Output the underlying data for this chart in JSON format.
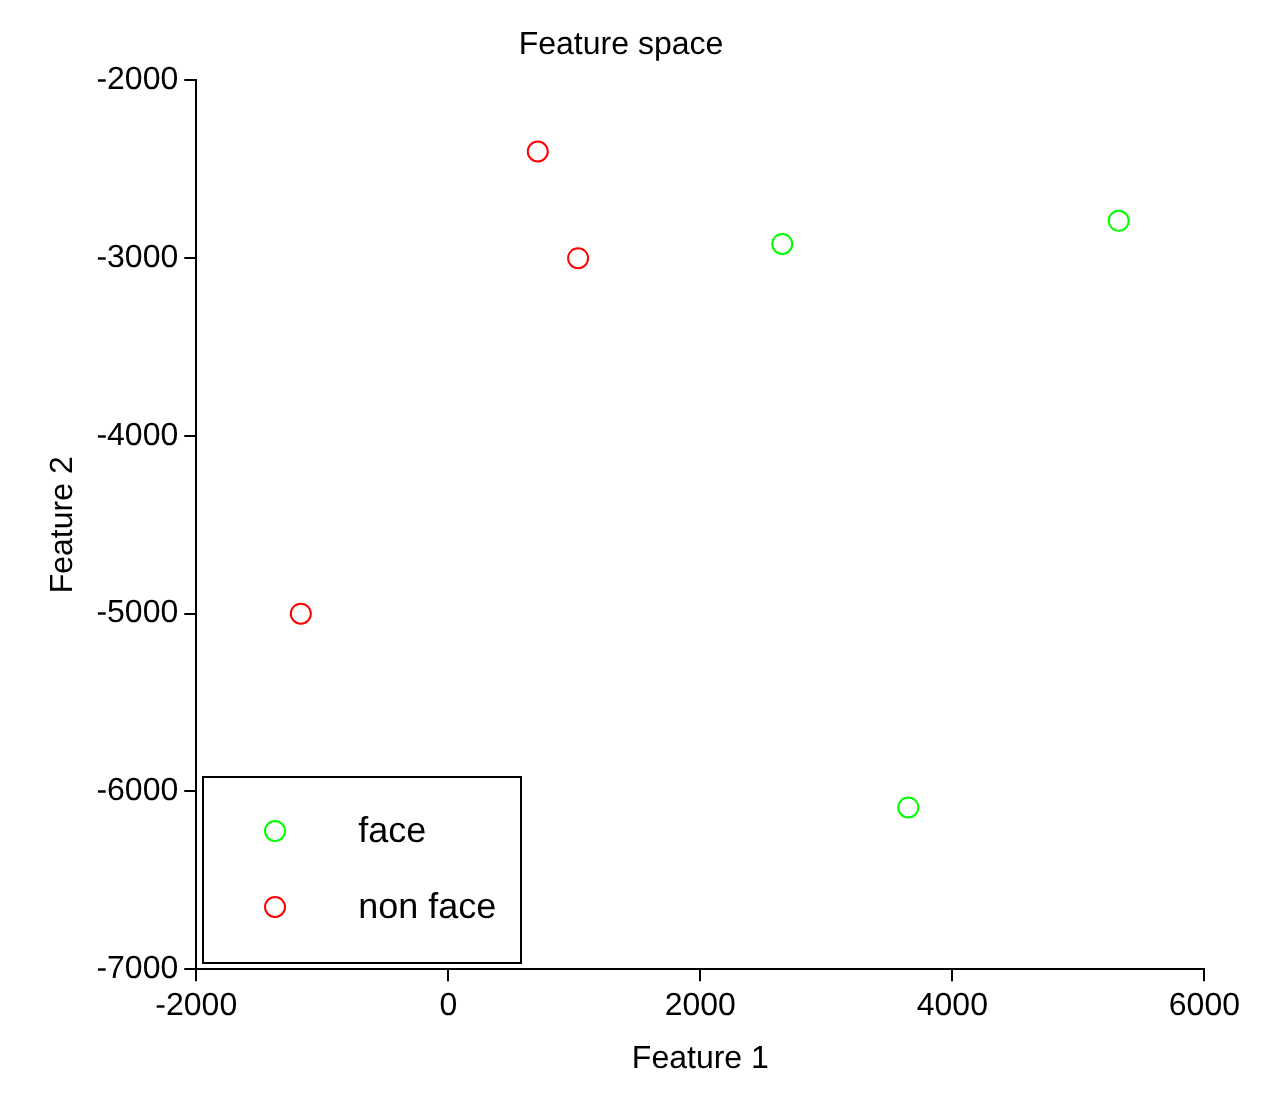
{
  "chart_data": {
    "type": "scatter",
    "title": "Feature space",
    "xlabel": "Feature 1",
    "ylabel": "Feature 2",
    "xlim": [
      -2000,
      6000
    ],
    "xticks": [
      -2000,
      0,
      2000,
      4000,
      6000
    ],
    "ylim": [
      -7000,
      -2000
    ],
    "yticks": [
      -7000,
      -6000,
      -5000,
      -4000,
      -3000,
      -2000
    ],
    "series": [
      {
        "name": "face",
        "color": "#00ff00",
        "x": [
          2650,
          5320,
          3650
        ],
        "values": [
          -2920,
          -2790,
          -6090
        ]
      },
      {
        "name": "non face",
        "color": "#ff0000",
        "x": [
          710,
          1030,
          -1170
        ],
        "values": [
          -2400,
          -3000,
          -5000
        ]
      }
    ],
    "grid": false,
    "legend": "bottom left",
    "marker": "circle"
  }
}
